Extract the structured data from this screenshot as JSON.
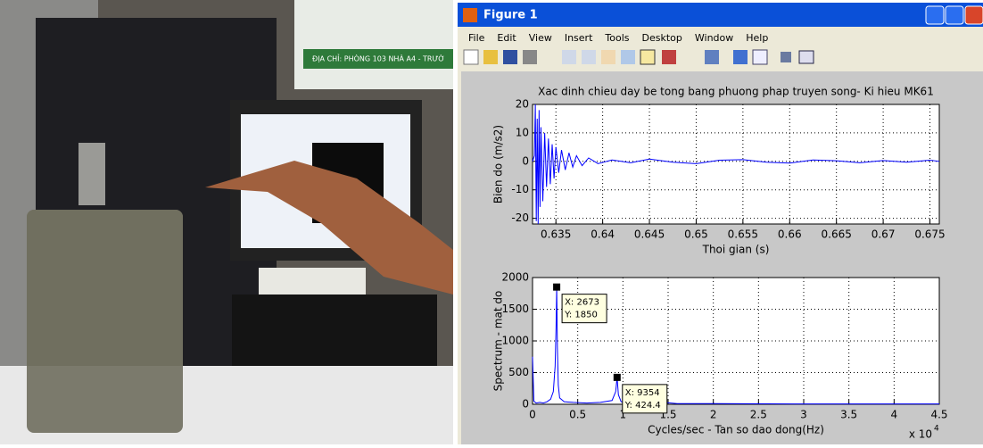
{
  "photo": {
    "sign": "ĐỊA CHỈ: PHÒNG 103 NHÀ A4 - TRƯỜ"
  },
  "window": {
    "title": "Figure 1",
    "menu": [
      "File",
      "Edit",
      "View",
      "Insert",
      "Tools",
      "Desktop",
      "Window",
      "Help"
    ]
  },
  "chart_data": [
    {
      "type": "line",
      "title": "Xac dinh chieu day be tong bang phuong phap truyen song- Ki hieu MK61",
      "x_label": "Thoi gian (s)",
      "y_label": "Bien do (m/s2)",
      "grid": true,
      "xlim": [
        0.6325,
        0.676
      ],
      "ylim": [
        -22,
        20
      ],
      "xticks": [
        0.635,
        0.64,
        0.645,
        0.65,
        0.655,
        0.66,
        0.665,
        0.67,
        0.675
      ],
      "yticks": [
        -20,
        -10,
        0,
        10,
        20
      ],
      "x": [
        0.6325,
        0.6327,
        0.6328,
        0.6329,
        0.633,
        0.6331,
        0.6332,
        0.6333,
        0.6334,
        0.6336,
        0.6338,
        0.634,
        0.6342,
        0.6344,
        0.6346,
        0.6348,
        0.635,
        0.6353,
        0.6356,
        0.636,
        0.6364,
        0.6368,
        0.6372,
        0.6378,
        0.6385,
        0.6395,
        0.641,
        0.643,
        0.645,
        0.6475,
        0.65,
        0.6525,
        0.655,
        0.6575,
        0.66,
        0.6625,
        0.665,
        0.6675,
        0.67,
        0.6725,
        0.675,
        0.676
      ],
      "series": [
        {
          "color": "#0000ff",
          "values": [
            0,
            2,
            20,
            -21,
            15,
            -22,
            18,
            -16,
            12,
            -14,
            10,
            -9,
            8,
            -8,
            6,
            -6,
            5,
            -4,
            4,
            -3,
            3,
            -2,
            2,
            -1.5,
            1.2,
            -0.8,
            0.5,
            -0.5,
            0.8,
            -0.3,
            -0.8,
            0.4,
            0.6,
            -0.3,
            -0.6,
            0.5,
            0.2,
            -0.5,
            0.3,
            -0.3,
            0.4,
            0
          ]
        }
      ]
    },
    {
      "type": "line",
      "x_label": "Cycles/sec - Tan so dao dong(Hz)",
      "y_label": "Spectrum - mat do",
      "grid": true,
      "x_multiplier": "x 10",
      "x_multiplier_exponent": "4",
      "xlim": [
        0,
        45000
      ],
      "ylim": [
        0,
        2000
      ],
      "xticks": [
        0,
        {
          "value": 5000,
          "label": "0.5"
        },
        {
          "value": 10000,
          "label": "1"
        },
        {
          "value": 15000,
          "label": "1.5"
        },
        {
          "value": 20000,
          "label": "2"
        },
        {
          "value": 25000,
          "label": "2.5"
        },
        {
          "value": 30000,
          "label": "3"
        },
        {
          "value": 35000,
          "label": "3.5"
        },
        {
          "value": 40000,
          "label": "4"
        },
        {
          "value": 45000,
          "label": "4.5"
        }
      ],
      "yticks": [
        0,
        500,
        1000,
        1500,
        2000
      ],
      "x": [
        0,
        150,
        400,
        800,
        1200,
        1600,
        2000,
        2300,
        2500,
        2600,
        2673,
        2750,
        2850,
        3000,
        3500,
        4500,
        6000,
        7500,
        8800,
        9200,
        9354,
        9500,
        9800,
        11000,
        12500,
        13800,
        14200,
        14500,
        16000,
        20000,
        30000,
        45000
      ],
      "series": [
        {
          "color": "#0000ff",
          "values": [
            750,
            50,
            20,
            30,
            20,
            40,
            80,
            200,
            600,
            1200,
            1850,
            900,
            300,
            100,
            40,
            30,
            20,
            30,
            60,
            200,
            424.4,
            150,
            40,
            20,
            20,
            40,
            80,
            30,
            10,
            10,
            5,
            5
          ]
        }
      ],
      "data_tips": [
        {
          "x": 2673,
          "y": 1850,
          "text": [
            "X: 2673",
            "Y: 1850"
          ]
        },
        {
          "x": 9354,
          "y": 424.4,
          "text": [
            "X: 9354",
            "Y: 424.4"
          ]
        }
      ]
    }
  ]
}
